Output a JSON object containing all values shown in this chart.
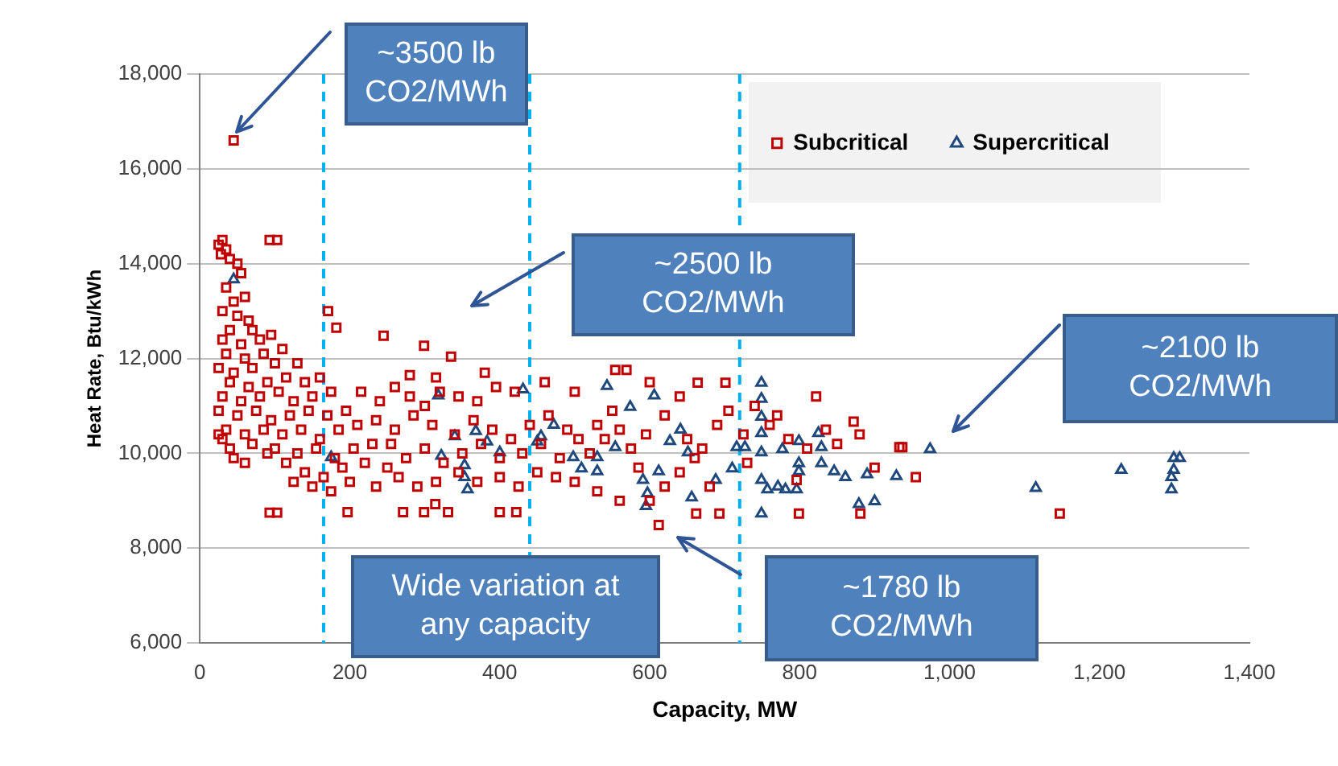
{
  "chart_data": {
    "type": "scatter",
    "xlabel": "Capacity, MW",
    "ylabel": "Heat Rate, Btu/kWh",
    "xlim": [
      0,
      1400
    ],
    "xticks": [
      0,
      {
        "value": 200,
        "label": "200"
      },
      {
        "value": 400,
        "label": "400"
      },
      {
        "value": 600,
        "label": "600"
      },
      {
        "value": 800,
        "label": "800"
      },
      {
        "value": 1000,
        "label": "1,000"
      },
      {
        "value": 1200,
        "label": "1,200"
      },
      {
        "value": 1400,
        "label": "1,400"
      }
    ],
    "ylim": [
      6000,
      18000
    ],
    "yticks": [
      {
        "value": 6000,
        "label": "6,000"
      },
      {
        "value": 8000,
        "label": "8,000"
      },
      {
        "value": 10000,
        "label": "10,000"
      },
      {
        "value": 12000,
        "label": "12,000"
      },
      {
        "value": 14000,
        "label": "14,000"
      },
      {
        "value": 16000,
        "label": "16,000"
      },
      {
        "value": 18000,
        "label": "18,000"
      }
    ],
    "grid": "y",
    "legend": "top right",
    "ref_lines": [
      {
        "axis": "x",
        "value": 165,
        "color": "#00b0f0",
        "line_style": "dashed"
      },
      {
        "axis": "x",
        "value": 440,
        "color": "#00b0f0",
        "line_style": "dashed"
      },
      {
        "axis": "x",
        "value": 720,
        "color": "#00b0f0",
        "line_style": "dashed"
      }
    ],
    "annotations": [
      "~3500 lb\nCO2/MWh",
      "~2500 lb\nCO2/MWh",
      "~2100 lb\nCO2/MWh",
      "~1780 lb\nCO2/MWh",
      "Wide variation at\nany capacity"
    ],
    "series": [
      {
        "name": "Subcritical",
        "color": "#c00000",
        "marker": "square",
        "x": [
          25,
          30,
          35,
          28,
          40,
          50,
          55,
          35,
          45,
          60,
          30,
          50,
          65,
          40,
          70,
          30,
          55,
          80,
          95,
          35,
          60,
          85,
          110,
          25,
          45,
          70,
          100,
          130,
          40,
          65,
          90,
          115,
          140,
          160,
          30,
          55,
          80,
          105,
          125,
          150,
          175,
          25,
          50,
          75,
          95,
          120,
          145,
          170,
          195,
          35,
          60,
          85,
          110,
          135,
          160,
          185,
          210,
          40,
          70,
          100,
          130,
          155,
          180,
          205,
          230,
          30,
          115,
          140,
          165,
          190,
          220,
          250,
          150,
          175,
          200,
          235,
          125,
          90,
          60,
          45,
          25,
          93,
          103,
          93,
          103,
          45,
          171,
          182,
          245,
          299,
          335,
          197,
          271,
          299,
          314,
          331,
          400,
          422,
          215,
          240,
          260,
          280,
          300,
          320,
          345,
          370,
          395,
          420,
          235,
          260,
          285,
          310,
          340,
          365,
          390,
          415,
          440,
          465,
          490,
          255,
          275,
          300,
          325,
          350,
          375,
          400,
          430,
          455,
          480,
          505,
          530,
          550,
          265,
          290,
          315,
          345,
          370,
          400,
          425,
          450,
          475,
          500,
          520,
          540,
          560,
          575,
          595,
          620,
          650,
          670,
          690,
          705,
          554,
          569,
          664,
          701,
          822,
          872,
          933,
          835,
          796,
          662,
          693,
          799,
          881,
          612,
          1147,
          937,
          600,
          620,
          640,
          660,
          585,
          725,
          760,
          785,
          810,
          850,
          880,
          900,
          955,
          740,
          770,
          640,
          600,
          500,
          460,
          380,
          315,
          280,
          730,
          680,
          530,
          560
        ],
        "values": [
          14400,
          14500,
          14300,
          14200,
          14100,
          14000,
          13800,
          13500,
          13200,
          13300,
          13000,
          12900,
          12800,
          12600,
          12600,
          12400,
          12300,
          12400,
          12500,
          12100,
          12000,
          12100,
          12200,
          11800,
          11700,
          11800,
          11900,
          11900,
          11500,
          11400,
          11500,
          11600,
          11500,
          11600,
          11200,
          11100,
          11200,
          11300,
          11100,
          11200,
          11300,
          10900,
          10800,
          10900,
          10700,
          10800,
          10900,
          10800,
          10900,
          10500,
          10400,
          10500,
          10400,
          10500,
          10300,
          10500,
          10600,
          10100,
          10200,
          10100,
          10000,
          10100,
          9900,
          10100,
          10200,
          10300,
          9800,
          9600,
          9500,
          9700,
          9800,
          9700,
          9300,
          9200,
          9400,
          9300,
          9400,
          10000,
          9800,
          9900,
          10400,
          14500,
          14500,
          8750,
          8750,
          16600,
          13000,
          12650,
          12480,
          12270,
          12040,
          8760,
          8760,
          8760,
          8930,
          8760,
          8760,
          8760,
          11300,
          11100,
          11400,
          11200,
          11000,
          11300,
          11200,
          11100,
          11400,
          11300,
          10700,
          10500,
          10800,
          10600,
          10400,
          10700,
          10500,
          10300,
          10600,
          10800,
          10500,
          10200,
          9900,
          10100,
          9800,
          10000,
          10200,
          9900,
          10000,
          10200,
          9900,
          10300,
          10600,
          10900,
          9500,
          9300,
          9400,
          9600,
          9400,
          9500,
          9300,
          9600,
          9500,
          9400,
          10000,
          10300,
          10500,
          10100,
          10400,
          10800,
          10300,
          10100,
          10600,
          10900,
          11760,
          11760,
          11490,
          11490,
          11200,
          10670,
          10130,
          10500,
          9440,
          8730,
          8730,
          8730,
          8730,
          8490,
          8730,
          10130,
          9000,
          9300,
          9600,
          9900,
          9700,
          10400,
          10600,
          10300,
          10100,
          10200,
          10400,
          9700,
          9500,
          11000,
          10800,
          11200,
          11500,
          11300,
          11500,
          11700,
          11600,
          11650,
          9800,
          9300,
          9200,
          9000
        ]
      },
      {
        "name": "Supercritical",
        "color": "#1f497d",
        "marker": "triangle",
        "x": [
          45,
          175,
          318,
          322,
          340,
          368,
          383,
          400,
          353,
          353,
          357,
          431,
          450,
          543,
          606,
          749,
          749,
          749,
          749,
          749,
          727,
          716,
          455,
          498,
          530,
          554,
          574,
          591,
          597,
          595,
          612,
          627,
          641,
          651,
          656,
          688,
          710,
          749,
          749,
          757,
          771,
          781,
          796,
          777,
          799,
          799,
          799,
          829,
          829,
          846,
          861,
          879,
          890,
          900,
          929,
          825,
          472,
          509,
          530,
          974,
          1115,
          1229,
          1299,
          1307,
          1296,
          1299,
          1296
        ],
        "values": [
          13670,
          9920,
          11220,
          9950,
          10360,
          10470,
          10250,
          10020,
          9750,
          9500,
          9240,
          11350,
          10250,
          11420,
          11220,
          11490,
          11150,
          10770,
          10430,
          10020,
          10130,
          10130,
          10360,
          9920,
          9620,
          10130,
          10980,
          9440,
          9160,
          8890,
          9620,
          10260,
          10500,
          10020,
          9070,
          9440,
          9680,
          8730,
          9440,
          9240,
          9300,
          9240,
          9240,
          10090,
          10260,
          9790,
          9620,
          10130,
          9790,
          9620,
          9500,
          8930,
          9560,
          8990,
          9520,
          10430,
          10600,
          9680,
          9920,
          10090,
          9270,
          9650,
          9900,
          9900,
          9240,
          9650,
          9500
        ]
      }
    ]
  }
}
